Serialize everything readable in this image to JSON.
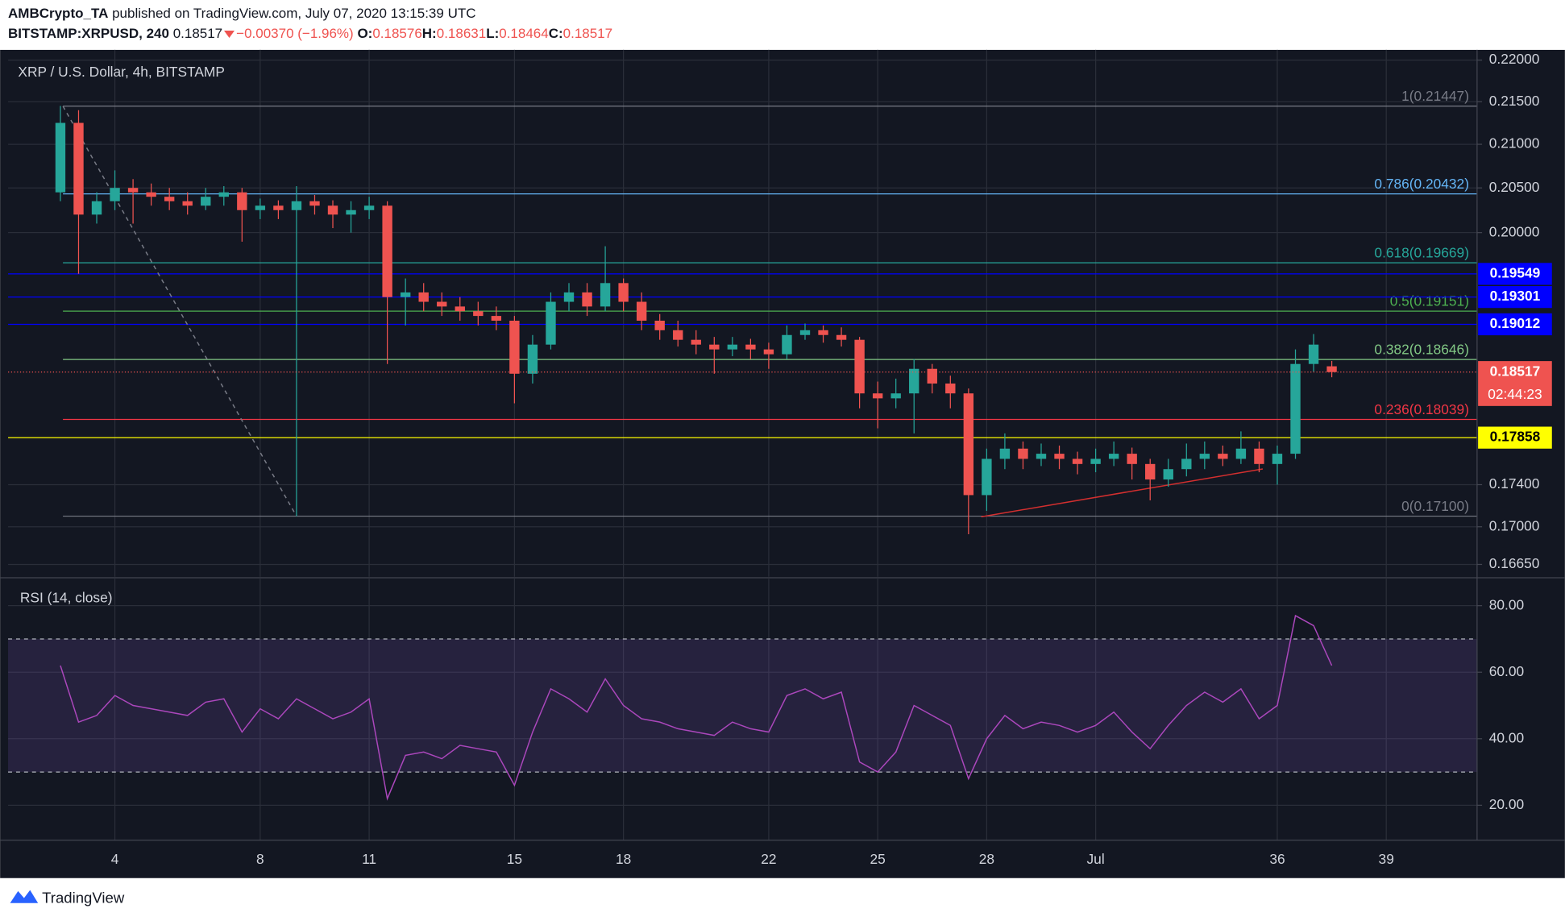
{
  "header": {
    "publisher": "AMBCrypto_TA",
    "published": "published on TradingView.com, July 07, 2020 13:15:39 UTC",
    "symbol": "BITSTAMP:XRPUSD, 240",
    "last": "0.18517",
    "change": "−0.00370 (−1.96%)",
    "ohlc": [
      {
        "key": "O:",
        "value": "0.18576"
      },
      {
        "key": "H:",
        "value": "0.18631"
      },
      {
        "key": "L:",
        "value": "0.18464"
      },
      {
        "key": "C:",
        "value": "0.18517"
      }
    ]
  },
  "chart_data": [
    {
      "type": "candlestick",
      "legend": "XRP / U.S. Dollar, 4h, BITSTAMP",
      "log": true,
      "grid": true,
      "up_color": "#26a69a",
      "down_color": "#ef5350",
      "x": [
        2.5,
        3,
        3.5,
        4,
        4.5,
        5,
        5.5,
        6,
        6.5,
        7,
        7.5,
        8,
        8.5,
        9,
        9.5,
        10,
        10.5,
        11,
        11.5,
        12,
        12.5,
        13,
        13.5,
        14,
        14.5,
        15,
        15.5,
        16,
        16.5,
        17,
        17.5,
        18,
        18.5,
        19,
        19.5,
        20,
        20.5,
        21,
        21.5,
        22,
        22.5,
        23,
        23.5,
        24,
        24.5,
        25,
        25.5,
        26,
        26.5,
        27,
        27.5,
        28,
        28.5,
        29,
        29.5,
        30,
        30.5,
        31,
        31.5,
        32,
        32.5,
        33,
        33.5,
        34,
        34.5,
        35,
        35.5,
        36,
        36.5,
        37,
        37.5
      ],
      "open": [
        0.2045,
        0.2125,
        0.202,
        0.2035,
        0.205,
        0.2045,
        0.204,
        0.2035,
        0.203,
        0.204,
        0.2045,
        0.2025,
        0.203,
        0.2025,
        0.2035,
        0.203,
        0.202,
        0.2025,
        0.203,
        0.193,
        0.1935,
        0.1925,
        0.192,
        0.1915,
        0.191,
        0.1905,
        0.185,
        0.188,
        0.1925,
        0.1935,
        0.192,
        0.1945,
        0.1925,
        0.1905,
        0.1895,
        0.1885,
        0.188,
        0.1875,
        0.188,
        0.1875,
        0.187,
        0.189,
        0.1895,
        0.189,
        0.1885,
        0.183,
        0.1825,
        0.183,
        0.1855,
        0.184,
        0.183,
        0.173,
        0.1765,
        0.1775,
        0.1765,
        0.177,
        0.1765,
        0.176,
        0.1765,
        0.177,
        0.176,
        0.1745,
        0.1755,
        0.1765,
        0.177,
        0.1765,
        0.1775,
        0.176,
        0.177,
        0.186,
        0.18576
      ],
      "high": [
        0.2145,
        0.214,
        0.2045,
        0.207,
        0.206,
        0.2055,
        0.205,
        0.2045,
        0.205,
        0.2052,
        0.205,
        0.2038,
        0.2036,
        0.2052,
        0.2042,
        0.2036,
        0.2035,
        0.204,
        0.2035,
        0.195,
        0.1945,
        0.1935,
        0.193,
        0.1925,
        0.192,
        0.191,
        0.189,
        0.1935,
        0.1945,
        0.1945,
        0.1985,
        0.195,
        0.1935,
        0.1912,
        0.1905,
        0.1895,
        0.1888,
        0.1888,
        0.1886,
        0.1882,
        0.19,
        0.1902,
        0.19,
        0.1898,
        0.1888,
        0.1842,
        0.1845,
        0.1865,
        0.186,
        0.1848,
        0.1835,
        0.1775,
        0.179,
        0.1782,
        0.178,
        0.1778,
        0.1772,
        0.1775,
        0.1782,
        0.1776,
        0.1765,
        0.1765,
        0.178,
        0.1782,
        0.1778,
        0.1792,
        0.1782,
        0.1778,
        0.1875,
        0.1891,
        0.18631
      ],
      "low": [
        0.2035,
        0.1955,
        0.201,
        0.2025,
        0.201,
        0.203,
        0.2025,
        0.202,
        0.2025,
        0.203,
        0.199,
        0.2015,
        0.2015,
        0.171,
        0.202,
        0.2005,
        0.2,
        0.2015,
        0.186,
        0.19,
        0.1915,
        0.191,
        0.1905,
        0.19,
        0.1895,
        0.182,
        0.184,
        0.1875,
        0.1915,
        0.191,
        0.1915,
        0.1915,
        0.1895,
        0.1885,
        0.1878,
        0.187,
        0.185,
        0.1868,
        0.1865,
        0.1855,
        0.1865,
        0.1885,
        0.1882,
        0.1878,
        0.1815,
        0.1795,
        0.1815,
        0.179,
        0.183,
        0.1815,
        0.1693,
        0.1715,
        0.1755,
        0.1755,
        0.1758,
        0.1755,
        0.175,
        0.1752,
        0.1758,
        0.1745,
        0.1725,
        0.1738,
        0.1748,
        0.1755,
        0.1758,
        0.176,
        0.1752,
        0.174,
        0.1765,
        0.1852,
        0.18464
      ],
      "close": [
        0.2125,
        0.202,
        0.2035,
        0.205,
        0.2045,
        0.204,
        0.2035,
        0.203,
        0.204,
        0.2045,
        0.2025,
        0.203,
        0.2025,
        0.2035,
        0.203,
        0.202,
        0.2025,
        0.203,
        0.193,
        0.1935,
        0.1925,
        0.192,
        0.1915,
        0.191,
        0.1905,
        0.185,
        0.188,
        0.1925,
        0.1935,
        0.192,
        0.1945,
        0.1925,
        0.1905,
        0.1895,
        0.1885,
        0.188,
        0.1875,
        0.188,
        0.1875,
        0.187,
        0.189,
        0.1895,
        0.189,
        0.1885,
        0.183,
        0.1825,
        0.183,
        0.1855,
        0.184,
        0.183,
        0.173,
        0.1765,
        0.1775,
        0.1765,
        0.177,
        0.1765,
        0.176,
        0.1765,
        0.177,
        0.176,
        0.1745,
        0.1755,
        0.1765,
        0.177,
        0.1765,
        0.1775,
        0.176,
        0.177,
        0.186,
        0.188,
        0.18517
      ],
      "xlim": [
        1.06,
        41.5
      ],
      "xticks": [
        4,
        8,
        11,
        15,
        18,
        22,
        25,
        28,
        {
          "value": 31,
          "label": "Jul"
        },
        36,
        39
      ],
      "ylim": [
        0.16537,
        0.221
      ],
      "yticks": [
        {
          "value": 0.22,
          "label": "0.22000"
        },
        {
          "value": 0.215,
          "label": "0.21500"
        },
        {
          "value": 0.21,
          "label": "0.21000"
        },
        {
          "value": 0.205,
          "label": "0.20500"
        },
        {
          "value": 0.2,
          "label": "0.20000"
        },
        {
          "value": 0.174,
          "label": "0.17400"
        },
        {
          "value": 0.17,
          "label": "0.17000"
        },
        {
          "value": 0.1665,
          "label": "0.16650"
        }
      ],
      "fib_levels": [
        {
          "label": "1(0.21447)",
          "value": 0.21447,
          "color": "#787b86"
        },
        {
          "label": "0.786(0.20432)",
          "value": 0.20432,
          "color": "#64b5f6"
        },
        {
          "label": "0.618(0.19669)",
          "value": 0.19669,
          "color": "#26a69a"
        },
        {
          "label": "0.5(0.19151)",
          "value": 0.19151,
          "color": "#4caf50"
        },
        {
          "label": "0.382(0.18646)",
          "value": 0.18646,
          "color": "#81c784"
        },
        {
          "label": "0.236(0.18039)",
          "value": 0.18039,
          "color": "#f23645"
        },
        {
          "label": "0(0.17100)",
          "value": 0.171,
          "color": "#787b86"
        }
      ],
      "trendlines": [
        {
          "points": [
            [
              2.57,
              0.21447
            ],
            [
              9.0,
              0.171
            ]
          ],
          "color": "#787b86",
          "dashed": true
        },
        {
          "points": [
            [
              27.85,
              0.17094
            ],
            [
              35.6,
              0.17552
            ]
          ],
          "color": "#d32f2f",
          "dashed": false
        }
      ],
      "levels": [
        {
          "value": 0.19549,
          "color": "#0000ff",
          "text_color": "#ffffff"
        },
        {
          "value": 0.19301,
          "color": "#0000ff",
          "text_color": "#ffffff"
        },
        {
          "value": 0.19012,
          "color": "#0000ff",
          "text_color": "#ffffff"
        },
        {
          "value": 0.17858,
          "color": "#ffff00",
          "text_color": "#000000"
        }
      ],
      "last": {
        "value": 0.18517,
        "countdown": "02:44:23",
        "color": "#ef5350"
      }
    },
    {
      "type": "line",
      "legend": "RSI (14, close)",
      "color": "#ab47bc",
      "band": [
        30,
        70
      ],
      "ylim": [
        9.5,
        88.1
      ],
      "yticks": [
        {
          "value": 20,
          "label": "20.00"
        },
        {
          "value": 40,
          "label": "40.00"
        },
        {
          "value": 60,
          "label": "60.00"
        },
        {
          "value": 80,
          "label": "80.00"
        }
      ],
      "values": [
        62,
        45,
        47,
        53,
        50,
        49,
        48,
        47,
        51,
        52,
        42,
        49,
        46,
        52,
        49,
        46,
        48,
        52,
        22,
        35,
        36,
        34,
        38,
        37,
        36,
        26,
        42,
        55,
        52,
        48,
        58,
        50,
        46,
        45,
        43,
        42,
        41,
        45,
        43,
        42,
        53,
        55,
        52,
        54,
        33,
        30,
        36,
        50,
        47,
        44,
        28,
        40,
        47,
        43,
        45,
        44,
        42,
        44,
        48,
        42,
        37,
        44,
        50,
        54,
        51,
        55,
        46,
        50,
        77,
        74,
        62
      ]
    }
  ],
  "footer": {
    "brand": "TradingView"
  }
}
